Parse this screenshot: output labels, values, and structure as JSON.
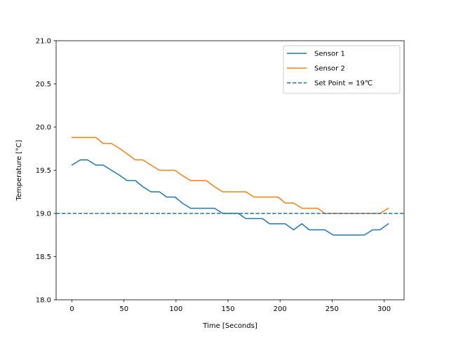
{
  "chart_data": {
    "type": "line",
    "title": "",
    "xlabel": "Time [Seconds]",
    "ylabel": "Temperature [°C]",
    "xlim": [
      -15.2,
      319.2
    ],
    "ylim": [
      18.0,
      21.0
    ],
    "xticks": [
      0,
      50,
      100,
      150,
      200,
      250,
      300
    ],
    "yticks": [
      18.0,
      18.5,
      19.0,
      19.5,
      20.0,
      20.5,
      21.0
    ],
    "ytick_labels": [
      "18.0",
      "18.5",
      "19.0",
      "19.5",
      "20.0",
      "20.5",
      "21.0"
    ],
    "grid": false,
    "legend_position": "top-right",
    "x": [
      0,
      8,
      15,
      23,
      30,
      38,
      46,
      53,
      61,
      68,
      76,
      84,
      91,
      99,
      106,
      114,
      122,
      129,
      137,
      145,
      152,
      160,
      167,
      175,
      183,
      190,
      198,
      205,
      213,
      221,
      228,
      236,
      243,
      251,
      258,
      266,
      274,
      281,
      289,
      296,
      304
    ],
    "series": [
      {
        "name": "Sensor 1",
        "color": "#1f77b4",
        "style": "solid",
        "values": [
          19.56,
          19.62,
          19.62,
          19.56,
          19.56,
          19.5,
          19.44,
          19.38,
          19.38,
          19.31,
          19.25,
          19.25,
          19.19,
          19.19,
          19.12,
          19.06,
          19.06,
          19.06,
          19.06,
          19.0,
          19.0,
          19.0,
          18.94,
          18.94,
          18.94,
          18.88,
          18.88,
          18.88,
          18.81,
          18.88,
          18.81,
          18.81,
          18.81,
          18.75,
          18.75,
          18.75,
          18.75,
          18.75,
          18.81,
          18.81,
          18.88
        ]
      },
      {
        "name": "Sensor 2",
        "color": "#ff7f0e",
        "style": "solid",
        "values": [
          19.88,
          19.88,
          19.88,
          19.88,
          19.81,
          19.81,
          19.75,
          19.69,
          19.62,
          19.62,
          19.56,
          19.5,
          19.5,
          19.5,
          19.44,
          19.38,
          19.38,
          19.38,
          19.31,
          19.25,
          19.25,
          19.25,
          19.25,
          19.19,
          19.19,
          19.19,
          19.19,
          19.12,
          19.12,
          19.06,
          19.06,
          19.06,
          19.0,
          19.0,
          19.0,
          19.0,
          19.0,
          19.0,
          19.0,
          19.0,
          19.06
        ]
      },
      {
        "name": "Set Point = 19℃",
        "color": "#1f77b4",
        "style": "dashed",
        "constant": 19.0
      }
    ]
  }
}
